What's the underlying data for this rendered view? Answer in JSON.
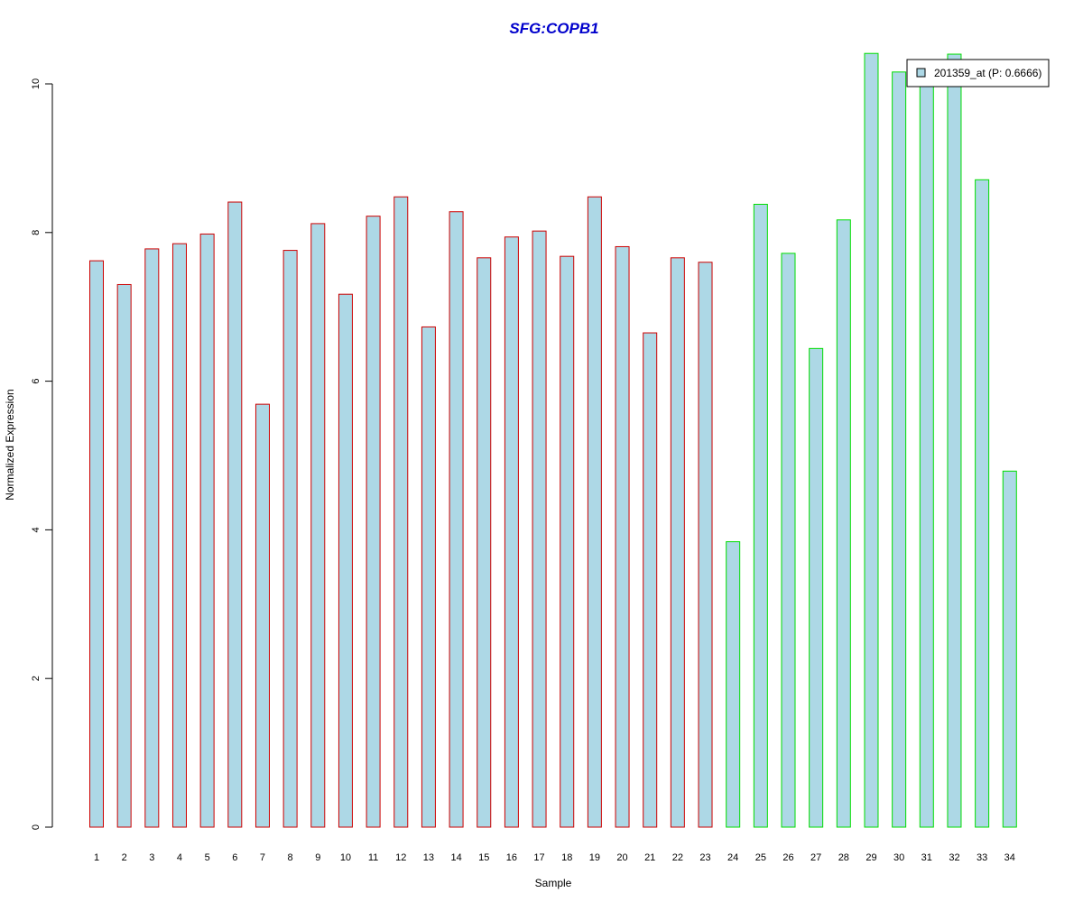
{
  "chart_data": {
    "type": "bar",
    "title": "SFG:COPB1",
    "xlabel": "Sample",
    "ylabel": "Normalized Expression",
    "categories": [
      "1",
      "2",
      "3",
      "4",
      "5",
      "6",
      "7",
      "8",
      "9",
      "10",
      "11",
      "12",
      "13",
      "14",
      "15",
      "16",
      "17",
      "18",
      "19",
      "20",
      "21",
      "22",
      "23",
      "24",
      "25",
      "26",
      "27",
      "28",
      "29",
      "30",
      "31",
      "32",
      "33",
      "34"
    ],
    "series": [
      {
        "name": "201359_at (P: 0.6666)",
        "values": [
          7.62,
          7.3,
          7.78,
          7.85,
          7.98,
          8.41,
          5.69,
          7.76,
          8.12,
          7.17,
          8.22,
          8.48,
          6.73,
          8.28,
          7.66,
          7.94,
          8.02,
          7.68,
          8.48,
          7.81,
          6.65,
          7.66,
          7.6,
          3.84,
          8.38,
          7.72,
          6.44,
          8.17,
          10.41,
          10.16,
          10.0,
          10.4,
          8.71,
          4.79
        ]
      }
    ],
    "group_borders": [
      "#cc0000",
      "#cc0000",
      "#cc0000",
      "#cc0000",
      "#cc0000",
      "#cc0000",
      "#cc0000",
      "#cc0000",
      "#cc0000",
      "#cc0000",
      "#cc0000",
      "#cc0000",
      "#cc0000",
      "#cc0000",
      "#cc0000",
      "#cc0000",
      "#cc0000",
      "#cc0000",
      "#cc0000",
      "#cc0000",
      "#cc0000",
      "#cc0000",
      "#cc0000",
      "#00dd00",
      "#00dd00",
      "#00dd00",
      "#00dd00",
      "#00dd00",
      "#00dd00",
      "#00dd00",
      "#00dd00",
      "#00dd00",
      "#00dd00",
      "#00dd00"
    ],
    "bar_fill": "#add8e6",
    "yticks": [
      "0",
      "2",
      "4",
      "6",
      "8",
      "10"
    ],
    "ylim": [
      0,
      10.5
    ],
    "grid": false,
    "legend_position": "top-right"
  }
}
